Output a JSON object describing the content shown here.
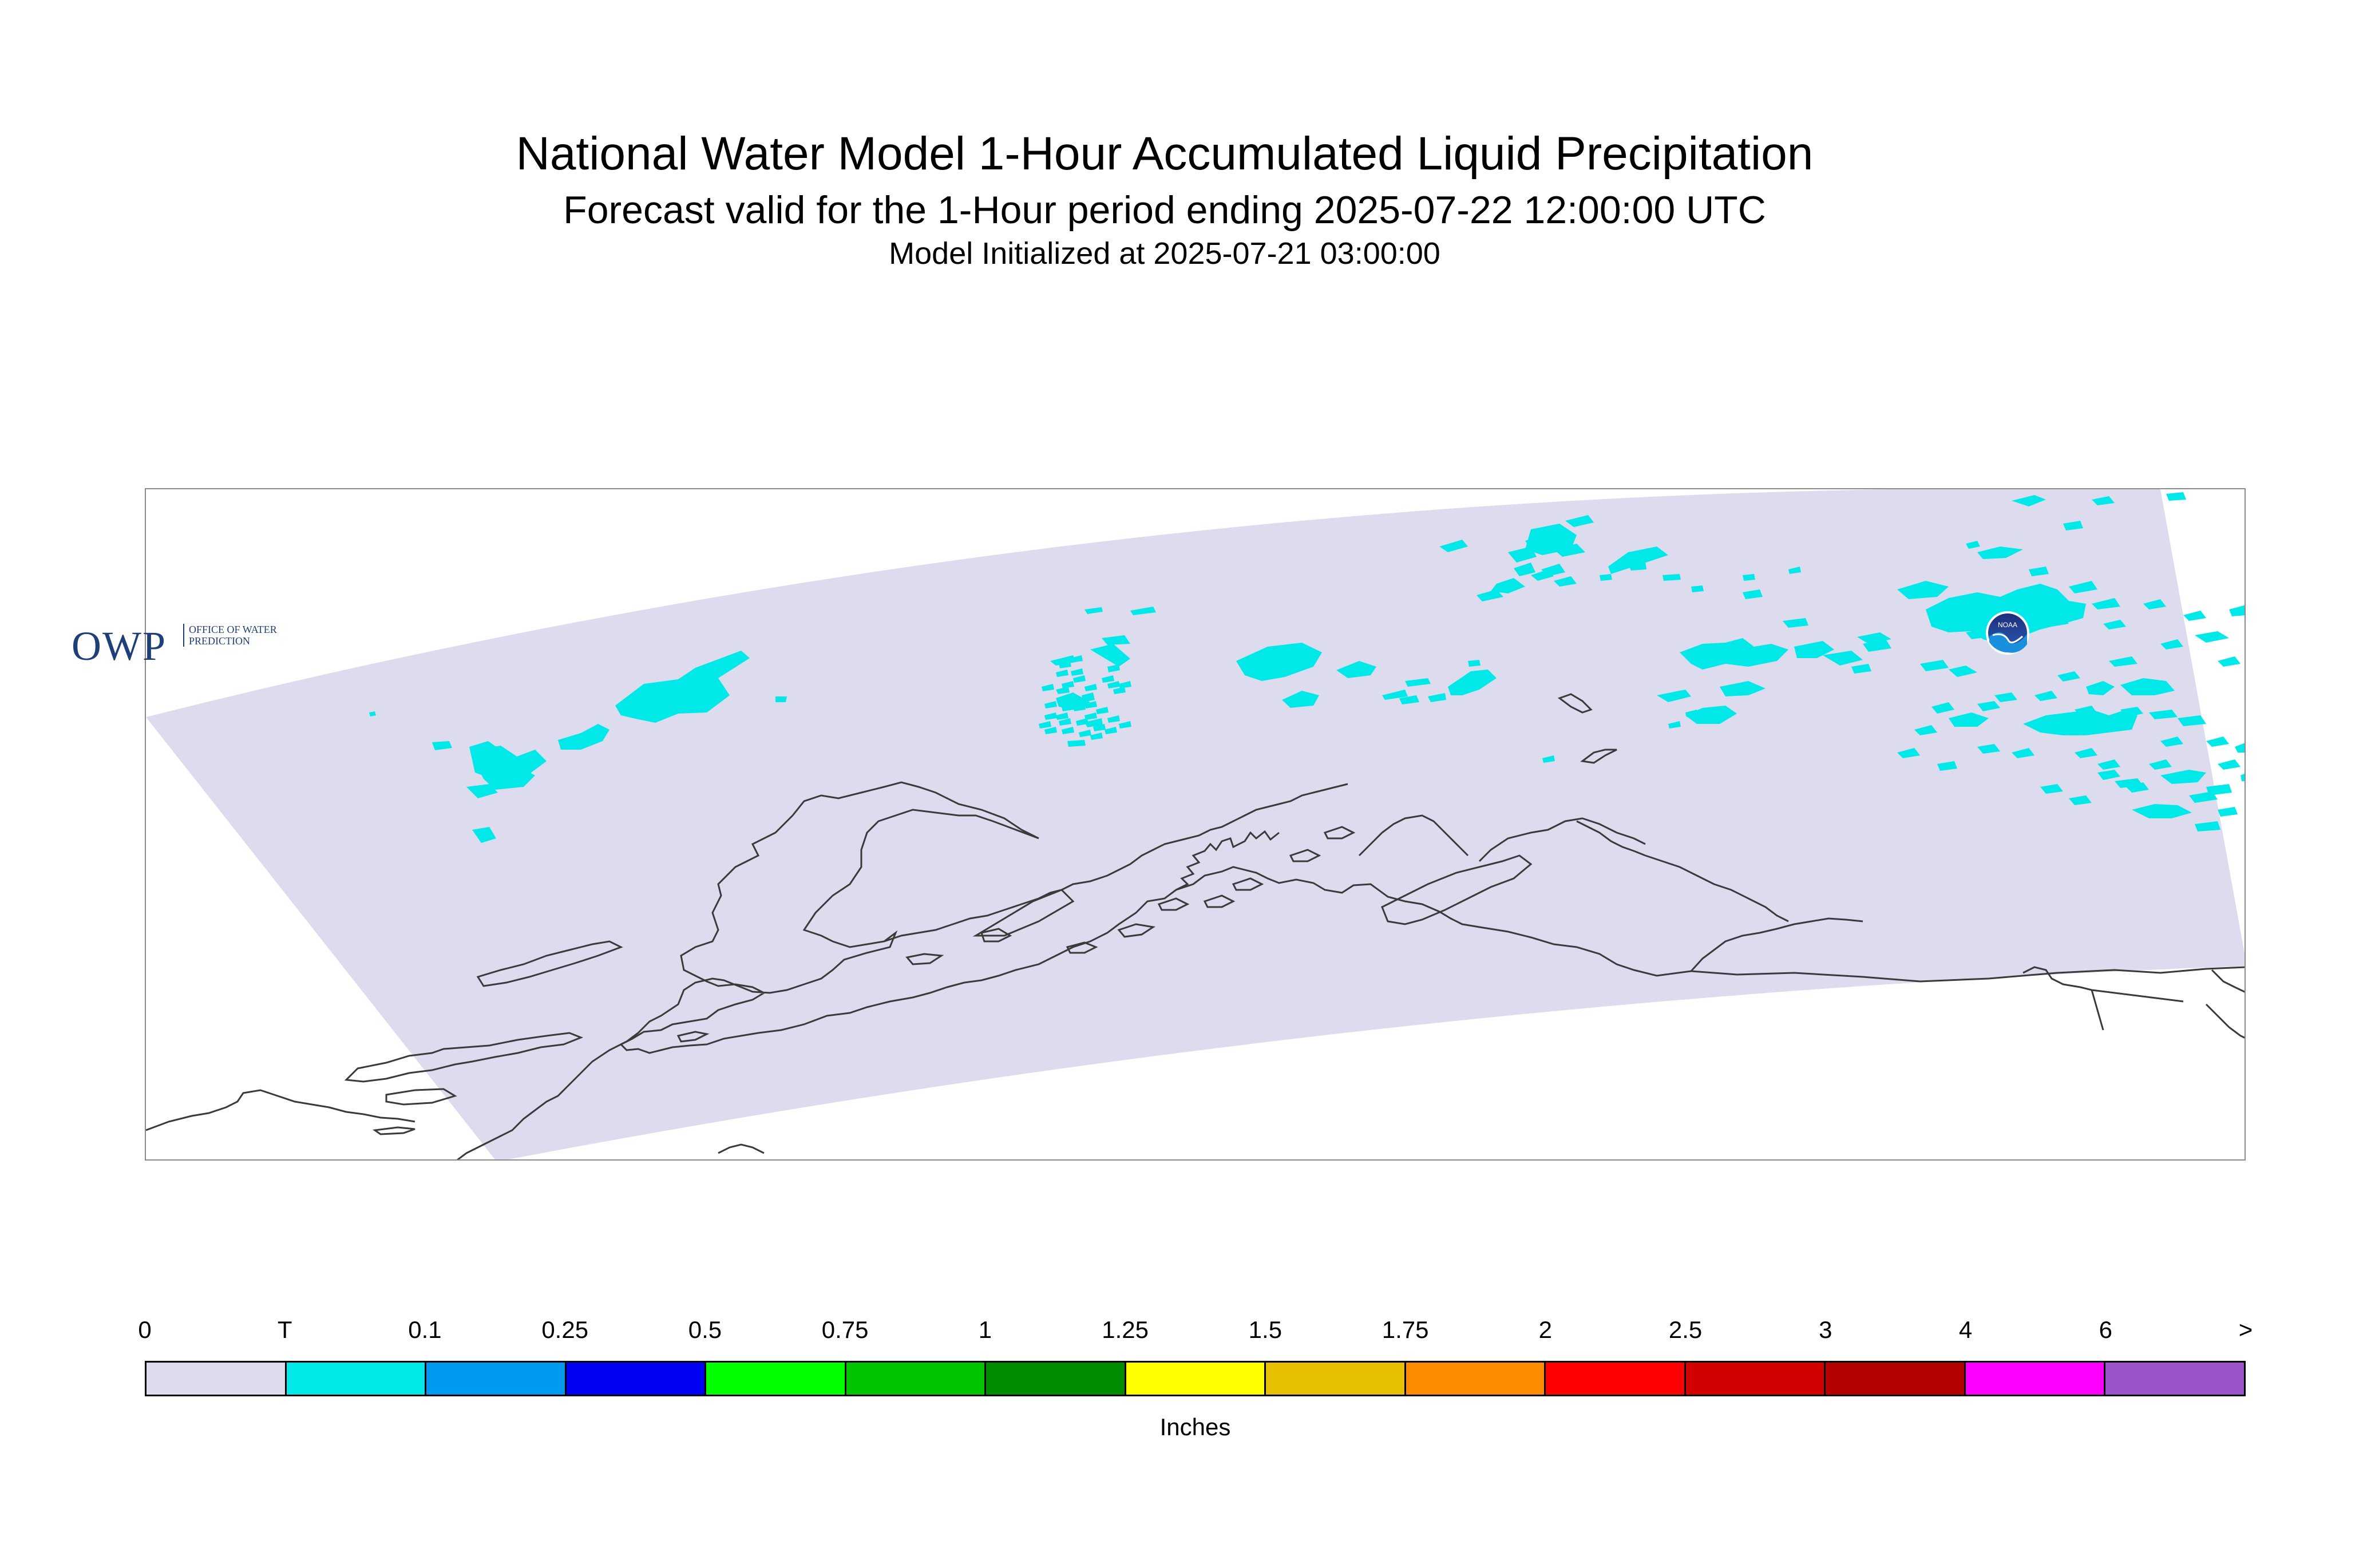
{
  "header": {
    "title": "National Water Model 1-Hour Accumulated Liquid Precipitation",
    "subtitle": "Forecast valid for the 1-Hour period ending 2025-07-22 12:00:00 UTC",
    "init": "Model Initialized at 2025-07-21 03:00:00"
  },
  "map": {
    "domain_fill": "#dcdcee",
    "precip_fill": "#00e8e8",
    "coast_color": "#3a3a3a",
    "logos": {
      "owp_letters": "OWP",
      "owp_text": "OFFICE OF WATER PREDICTION",
      "noaa_text": "NOAA"
    }
  },
  "legend": {
    "units": "Inches",
    "tick_labels": [
      "0",
      "T",
      "0.1",
      "0.25",
      "0.5",
      "0.75",
      "1",
      "1.25",
      "1.5",
      "1.75",
      "2",
      "2.5",
      "3",
      "4",
      "6",
      ">"
    ],
    "colors": [
      "#dcdcee",
      "#00e8e8",
      "#0099f2",
      "#0000f2",
      "#00ff00",
      "#00c400",
      "#008c00",
      "#ffff00",
      "#e6c000",
      "#ff8c00",
      "#ff0000",
      "#d20000",
      "#b40000",
      "#ff00ff",
      "#9955c9"
    ]
  }
}
